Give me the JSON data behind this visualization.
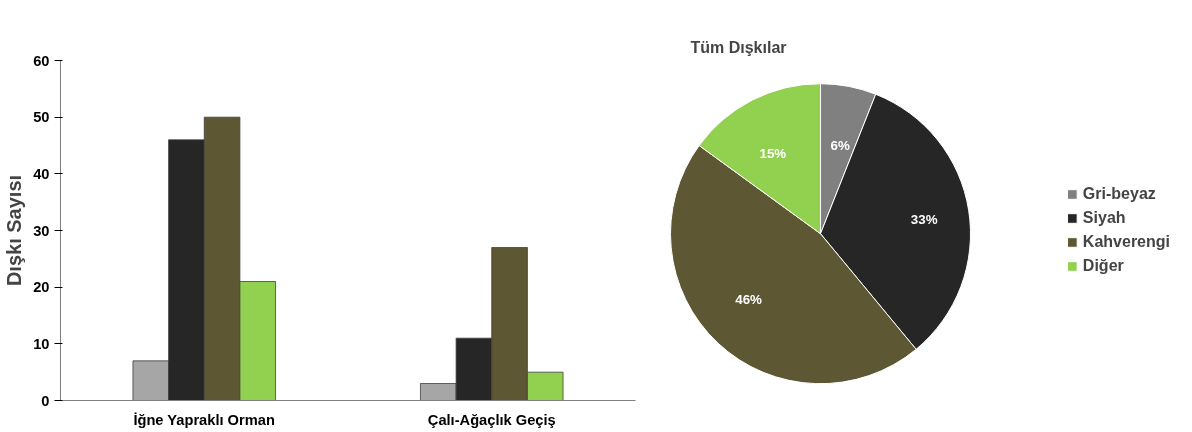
{
  "chart_data": [
    {
      "type": "bar",
      "ylabel": "Dışkı Sayısı",
      "categories": [
        "İğne Yapraklı Orman",
        "Çalı-Ağaçlık Geçiş"
      ],
      "series": [
        {
          "color": "#a6a6a6",
          "values": [
            7,
            3
          ]
        },
        {
          "color": "#262626",
          "values": [
            46,
            11
          ]
        },
        {
          "color": "#5e5733",
          "values": [
            50,
            27
          ]
        },
        {
          "color": "#92d050",
          "values": [
            21,
            5
          ]
        }
      ],
      "ylim": [
        0,
        60
      ],
      "yticks": [
        0,
        10,
        20,
        30,
        40,
        50,
        60
      ],
      "grid": false
    },
    {
      "type": "pie",
      "title": "Tüm Dışkılar",
      "categories": [
        "Gri-beyaz",
        "Siyah",
        "Kahverengi",
        "Diğer"
      ],
      "values": [
        6,
        33,
        46,
        15
      ],
      "colors": [
        "#808080",
        "#262626",
        "#5e5733",
        "#92d050"
      ],
      "value_labels": [
        "6%",
        "33%",
        "46%",
        "15%"
      ],
      "legend": "right"
    }
  ]
}
